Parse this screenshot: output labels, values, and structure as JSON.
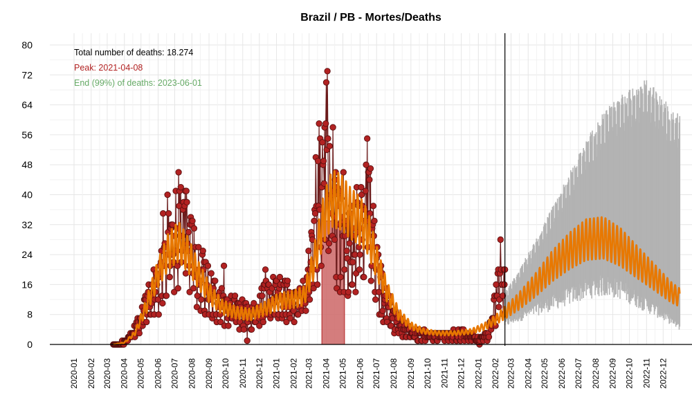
{
  "chart_data": {
    "type": "line",
    "title": "Brazil / PB - Mortes/Deaths",
    "xlabel": "",
    "ylabel": "",
    "ylim": [
      0,
      80
    ],
    "yticks": [
      0,
      8,
      16,
      24,
      32,
      40,
      48,
      56,
      64,
      72,
      80
    ],
    "grid": true,
    "x_tick_labels": [
      "2020-01",
      "2020-02",
      "2020-03",
      "2020-04",
      "2020-05",
      "2020-06",
      "2020-07",
      "2020-08",
      "2020-09",
      "2020-10",
      "2020-11",
      "2020-12",
      "2021-01",
      "2021-02",
      "2021-03",
      "2021-04",
      "2021-05",
      "2021-06",
      "2021-07",
      "2021-08",
      "2021-09",
      "2021-10",
      "2021-11",
      "2021-12",
      "2022-01",
      "2022-02",
      "2022-03",
      "2022-04",
      "2022-05",
      "2022-06",
      "2022-07",
      "2022-08",
      "2022-09",
      "2022-10",
      "2022-11",
      "2022-12"
    ],
    "annotations": {
      "total": "Total number of deaths: 18.274",
      "peak": "Peak: 2021-04-08",
      "end": "End (99%) of deaths: 2023-06-01"
    },
    "colors": {
      "observed_points": "#b22222",
      "observed_line": "#6b1a1a",
      "fitted": "#e87800",
      "prediction_band": "#b3b3b3",
      "peak_region": "#cc6666",
      "peak_text": "#b22222",
      "end_text": "#66aa66",
      "cutoff_line": "#000000"
    },
    "peak_region": {
      "start": "2021-03-24",
      "end": "2021-05-04",
      "height": 33
    },
    "cutoff_date": "2022-02-18",
    "observed_knots": [
      [
        "2020-03-12",
        0
      ],
      [
        "2020-03-25",
        0.2
      ],
      [
        "2020-04-05",
        1
      ],
      [
        "2020-04-20",
        4
      ],
      [
        "2020-05-05",
        8
      ],
      [
        "2020-05-20",
        14
      ],
      [
        "2020-06-05",
        20
      ],
      [
        "2020-06-20",
        27
      ],
      [
        "2020-07-05",
        32
      ],
      [
        "2020-07-15",
        34
      ],
      [
        "2020-07-25",
        31
      ],
      [
        "2020-08-10",
        22
      ],
      [
        "2020-08-25",
        18
      ],
      [
        "2020-09-10",
        13
      ],
      [
        "2020-09-25",
        11
      ],
      [
        "2020-10-10",
        10
      ],
      [
        "2020-10-25",
        9
      ],
      [
        "2020-11-10",
        8.5
      ],
      [
        "2020-11-25",
        9
      ],
      [
        "2020-12-10",
        12
      ],
      [
        "2020-12-25",
        13
      ],
      [
        "2021-01-10",
        13
      ],
      [
        "2021-01-25",
        12
      ],
      [
        "2021-02-10",
        12
      ],
      [
        "2021-02-25",
        16
      ],
      [
        "2021-03-10",
        28
      ],
      [
        "2021-03-20",
        40
      ],
      [
        "2021-03-31",
        46
      ],
      [
        "2021-04-10",
        41
      ],
      [
        "2021-04-20",
        33
      ],
      [
        "2021-05-01",
        28
      ],
      [
        "2021-05-15",
        27
      ],
      [
        "2021-05-30",
        32
      ],
      [
        "2021-06-10",
        36
      ],
      [
        "2021-06-20",
        33
      ],
      [
        "2021-07-01",
        22
      ],
      [
        "2021-07-15",
        12
      ],
      [
        "2021-08-01",
        7
      ],
      [
        "2021-08-20",
        4
      ],
      [
        "2021-09-10",
        3
      ],
      [
        "2021-10-01",
        2.5
      ],
      [
        "2021-10-20",
        2.5
      ],
      [
        "2021-11-10",
        2.5
      ],
      [
        "2021-11-30",
        3
      ],
      [
        "2021-12-15",
        2.5
      ],
      [
        "2022-01-01",
        1.5
      ],
      [
        "2022-01-20",
        3
      ],
      [
        "2022-02-05",
        14
      ],
      [
        "2022-02-18",
        19
      ]
    ],
    "fitted_knots": [
      [
        "2020-03-12",
        0
      ],
      [
        "2020-04-01",
        0.5
      ],
      [
        "2020-04-20",
        3
      ],
      [
        "2020-05-10",
        10
      ],
      [
        "2020-06-01",
        19
      ],
      [
        "2020-06-20",
        25
      ],
      [
        "2020-07-08",
        27.5
      ],
      [
        "2020-07-25",
        24
      ],
      [
        "2020-08-15",
        18
      ],
      [
        "2020-09-05",
        13
      ],
      [
        "2020-09-25",
        10
      ],
      [
        "2020-10-20",
        8.5
      ],
      [
        "2020-11-15",
        8
      ],
      [
        "2020-12-10",
        9.5
      ],
      [
        "2021-01-05",
        11.5
      ],
      [
        "2021-01-30",
        12
      ],
      [
        "2021-02-20",
        13
      ],
      [
        "2021-03-10",
        22
      ],
      [
        "2021-03-28",
        34
      ],
      [
        "2021-04-12",
        39
      ],
      [
        "2021-04-28",
        38
      ],
      [
        "2021-05-15",
        35
      ],
      [
        "2021-06-01",
        33
      ],
      [
        "2021-06-15",
        30
      ],
      [
        "2021-07-01",
        22
      ],
      [
        "2021-07-20",
        14
      ],
      [
        "2021-08-10",
        8
      ],
      [
        "2021-09-01",
        5
      ],
      [
        "2021-09-25",
        3.5
      ],
      [
        "2021-10-20",
        3
      ],
      [
        "2021-11-20",
        3
      ],
      [
        "2021-12-20",
        3.5
      ],
      [
        "2022-01-15",
        5
      ],
      [
        "2022-02-05",
        7
      ],
      [
        "2022-02-18",
        8.5
      ],
      [
        "2022-03-15",
        11.5
      ],
      [
        "2022-04-15",
        16
      ],
      [
        "2022-05-15",
        21
      ],
      [
        "2022-06-15",
        25
      ],
      [
        "2022-07-15",
        28
      ],
      [
        "2022-08-15",
        28.5
      ],
      [
        "2022-09-15",
        26
      ],
      [
        "2022-10-15",
        22
      ],
      [
        "2022-11-15",
        18
      ],
      [
        "2022-12-15",
        14
      ],
      [
        "2022-12-31",
        12.5
      ]
    ],
    "band_upper_knots": [
      [
        "2022-02-18",
        14
      ],
      [
        "2022-03-15",
        20
      ],
      [
        "2022-04-15",
        28
      ],
      [
        "2022-05-15",
        37
      ],
      [
        "2022-06-15",
        46
      ],
      [
        "2022-07-15",
        55
      ],
      [
        "2022-08-15",
        62
      ],
      [
        "2022-09-15",
        67
      ],
      [
        "2022-10-15",
        70
      ],
      [
        "2022-10-31",
        71
      ],
      [
        "2022-11-15",
        69
      ],
      [
        "2022-12-01",
        66
      ],
      [
        "2022-12-15",
        63
      ],
      [
        "2022-12-31",
        62
      ]
    ],
    "band_lower_knots": [
      [
        "2022-02-18",
        6
      ],
      [
        "2022-03-15",
        8
      ],
      [
        "2022-04-15",
        10
      ],
      [
        "2022-05-15",
        12
      ],
      [
        "2022-06-15",
        14
      ],
      [
        "2022-07-15",
        16
      ],
      [
        "2022-08-15",
        17
      ],
      [
        "2022-09-15",
        16
      ],
      [
        "2022-10-15",
        13
      ],
      [
        "2022-11-15",
        10
      ],
      [
        "2022-12-15",
        7
      ],
      [
        "2022-12-31",
        5
      ]
    ],
    "observed_spikes": [
      [
        "2020-06-10",
        35
      ],
      [
        "2020-06-18",
        40
      ],
      [
        "2020-07-08",
        46
      ],
      [
        "2020-07-12",
        42
      ],
      [
        "2020-07-20",
        41
      ],
      [
        "2020-08-05",
        31
      ],
      [
        "2020-09-28",
        21
      ],
      [
        "2020-11-09",
        1
      ],
      [
        "2020-12-12",
        20
      ],
      [
        "2021-03-13",
        50
      ],
      [
        "2021-03-19",
        59
      ],
      [
        "2021-03-29",
        58
      ],
      [
        "2021-04-01",
        70
      ],
      [
        "2021-04-03",
        73
      ],
      [
        "2021-04-13",
        58
      ],
      [
        "2021-04-17",
        44
      ],
      [
        "2021-05-02",
        46
      ],
      [
        "2021-06-14",
        55
      ],
      [
        "2021-06-17",
        46
      ],
      [
        "2021-06-20",
        47
      ],
      [
        "2021-07-10",
        8
      ],
      [
        "2022-01-03",
        0
      ],
      [
        "2022-02-10",
        28
      ]
    ]
  }
}
